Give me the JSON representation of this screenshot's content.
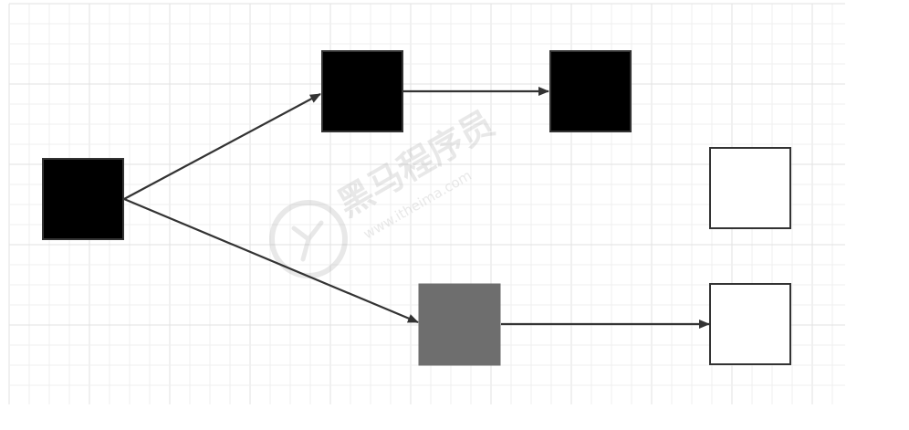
{
  "diagram": {
    "nodes": [
      {
        "id": "n1",
        "fill": "#000000"
      },
      {
        "id": "n2",
        "fill": "#000000"
      },
      {
        "id": "n3",
        "fill": "#000000"
      },
      {
        "id": "n4",
        "fill": "#6e6e6e"
      },
      {
        "id": "n5",
        "fill": "#ffffff"
      },
      {
        "id": "n6",
        "fill": "#ffffff"
      }
    ],
    "edges": [
      {
        "from": "n1",
        "to": "n2"
      },
      {
        "from": "n1",
        "to": "n4"
      },
      {
        "from": "n2",
        "to": "n3"
      },
      {
        "from": "n4",
        "to": "n6"
      }
    ],
    "colors": {
      "grid_minor": "#efefef",
      "grid_major": "#e2e2e2",
      "edge": "#333333",
      "node_border": "#333333"
    }
  },
  "watermark": {
    "brand": "黑马程序员",
    "url": "www.itheima.com"
  }
}
